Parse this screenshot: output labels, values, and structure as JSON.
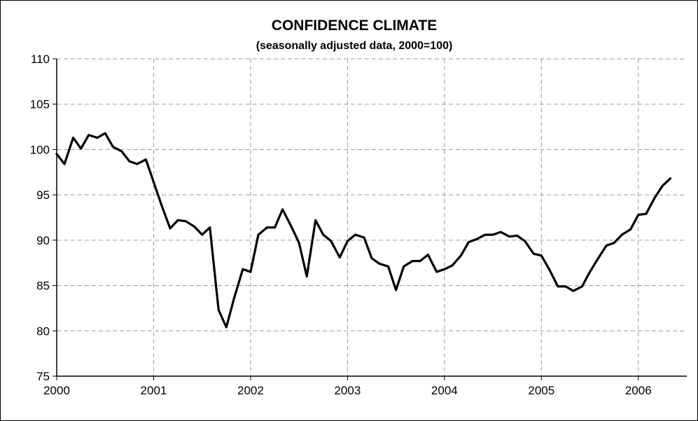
{
  "chart_data": {
    "type": "line",
    "title": "CONFIDENCE CLIMATE",
    "subtitle": "(seasonally adjusted data, 2000=100)",
    "xlabel": "",
    "ylabel": "",
    "xlim": [
      2000.0,
      2006.5
    ],
    "ylim": [
      75,
      110
    ],
    "x_ticks": [
      "2000",
      "2001",
      "2002",
      "2003",
      "2004",
      "2005",
      "2006"
    ],
    "y_ticks": [
      "75",
      "80",
      "85",
      "90",
      "95",
      "100",
      "105",
      "110"
    ],
    "grid": true,
    "legend": "none",
    "line_color": "#000000",
    "series": [
      {
        "x": [
          2000.0,
          2000.08,
          2000.17,
          2000.25,
          2000.33,
          2000.42,
          2000.5,
          2000.58,
          2000.67,
          2000.75,
          2000.83,
          2000.92,
          2001.0,
          2001.08,
          2001.17,
          2001.25,
          2001.33,
          2001.42,
          2001.5,
          2001.58,
          2001.67,
          2001.75,
          2001.83,
          2001.92,
          2002.0,
          2002.08,
          2002.17,
          2002.25,
          2002.33,
          2002.42,
          2002.5,
          2002.58,
          2002.67,
          2002.75,
          2002.83,
          2002.92,
          2003.0,
          2003.08,
          2003.17,
          2003.25,
          2003.33,
          2003.42,
          2003.5,
          2003.58,
          2003.67,
          2003.75,
          2003.83,
          2003.92,
          2004.0,
          2004.08,
          2004.17,
          2004.25,
          2004.33,
          2004.42,
          2004.5,
          2004.58,
          2004.67,
          2004.75,
          2004.83,
          2004.92,
          2005.0,
          2005.08,
          2005.17,
          2005.25,
          2005.33,
          2005.42,
          2005.5,
          2005.58,
          2005.67,
          2005.75,
          2005.83,
          2005.92,
          2006.0,
          2006.08,
          2006.17,
          2006.25,
          2006.33
        ],
        "values": [
          99.5,
          98.4,
          101.3,
          100.1,
          101.6,
          101.3,
          101.8,
          100.3,
          99.8,
          98.7,
          98.4,
          98.9,
          96.4,
          93.9,
          91.3,
          92.2,
          92.1,
          91.5,
          90.6,
          91.4,
          82.3,
          80.4,
          83.6,
          86.8,
          86.5,
          90.6,
          91.4,
          91.4,
          93.4,
          91.5,
          89.7,
          86.0,
          92.2,
          90.6,
          89.9,
          88.1,
          89.9,
          90.6,
          90.3,
          88.0,
          87.4,
          87.1,
          84.5,
          87.1,
          87.7,
          87.7,
          88.4,
          86.5,
          86.8,
          87.2,
          88.3,
          89.8,
          90.1,
          90.6,
          90.6,
          90.9,
          90.4,
          90.5,
          89.9,
          88.5,
          88.3,
          86.8,
          84.9,
          84.9,
          84.4,
          84.9,
          86.5,
          87.9,
          89.4,
          89.7,
          90.6,
          91.2,
          92.8,
          92.9,
          94.7,
          96.0,
          96.8
        ]
      }
    ]
  }
}
